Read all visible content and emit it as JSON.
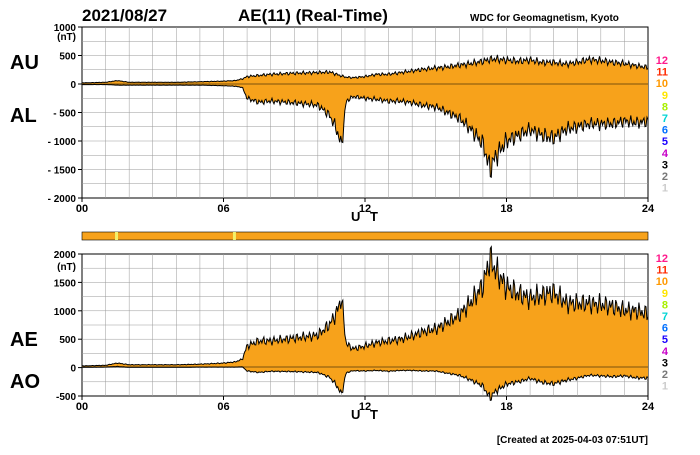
{
  "header": {
    "date": "2021/08/27",
    "title": "AE(11) (Real-Time)",
    "credit": "WDC for Geomagnetism, Kyoto"
  },
  "footer": {
    "created": "[Created at 2025-04-03 07:51UT]"
  },
  "colors": {
    "fill": "#f7a21b",
    "outline": "#000000",
    "grid": "#9a9a9a",
    "qcbar": "#f7a21b"
  },
  "legend": [
    {
      "label": "12",
      "color": "#ff1a8c"
    },
    {
      "label": "11",
      "color": "#ff2a00"
    },
    {
      "label": "10",
      "color": "#ff9900"
    },
    {
      "label": "9",
      "color": "#ffe600"
    },
    {
      "label": "8",
      "color": "#a8f000"
    },
    {
      "label": "7",
      "color": "#00d4d4"
    },
    {
      "label": "6",
      "color": "#0070ff"
    },
    {
      "label": "5",
      "color": "#1a00ff"
    },
    {
      "label": "4",
      "color": "#c800c8"
    },
    {
      "label": "3",
      "color": "#000000"
    },
    {
      "label": "2",
      "color": "#777777"
    },
    {
      "label": "1",
      "color": "#cccccc"
    }
  ],
  "chart_data": [
    {
      "type": "area",
      "panel": "AU/AL",
      "series_labels": {
        "upper": "AU",
        "lower": "AL"
      },
      "ylabel_unit": "(nT)",
      "xlabel": "U T",
      "xlim": [
        0,
        24
      ],
      "ylim": [
        -2000,
        1000
      ],
      "xticks": [
        "00",
        "06",
        "12",
        "18",
        "24"
      ],
      "yticks": [
        "1000",
        "500",
        "0",
        "- 500",
        "- 1000",
        "- 1500",
        "- 2000"
      ],
      "ytick_values": [
        1000,
        500,
        0,
        -500,
        -1000,
        -1500,
        -2000
      ],
      "grid": true,
      "x": [
        0,
        1,
        1.5,
        2,
        3,
        4,
        5,
        6,
        6.5,
        6.8,
        7,
        7.5,
        8,
        9,
        10,
        10.5,
        10.8,
        11,
        11.2,
        11.5,
        12,
        12.5,
        13,
        13.5,
        14,
        14.5,
        15,
        15.5,
        16,
        16.5,
        17,
        17.3,
        17.5,
        18,
        18.5,
        19,
        19.5,
        20,
        20.5,
        21,
        21.5,
        22,
        22.5,
        23,
        23.5,
        24
      ],
      "au": [
        20,
        30,
        60,
        30,
        30,
        30,
        40,
        50,
        60,
        90,
        130,
        150,
        170,
        190,
        200,
        210,
        170,
        140,
        120,
        110,
        130,
        170,
        170,
        200,
        230,
        260,
        280,
        300,
        330,
        360,
        400,
        430,
        440,
        420,
        400,
        420,
        380,
        380,
        350,
        380,
        430,
        410,
        380,
        360,
        320,
        290
      ],
      "al": [
        -10,
        -10,
        -20,
        -20,
        -20,
        -20,
        -20,
        -30,
        -40,
        -60,
        -250,
        -320,
        -300,
        -330,
        -370,
        -550,
        -800,
        -1100,
        -300,
        -220,
        -250,
        -270,
        -300,
        -300,
        -330,
        -380,
        -400,
        -500,
        -600,
        -800,
        -1050,
        -1500,
        -1300,
        -1000,
        -900,
        -800,
        -900,
        -950,
        -800,
        -750,
        -700,
        -700,
        -700,
        -650,
        -680,
        -660
      ]
    },
    {
      "type": "area",
      "panel": "AE/AO",
      "series_labels": {
        "upper": "AE",
        "lower": "AO"
      },
      "ylabel_unit": "(nT)",
      "xlabel": "U T",
      "xlim": [
        0,
        24
      ],
      "ylim": [
        -500,
        2000
      ],
      "xticks": [
        "00",
        "06",
        "12",
        "18",
        "24"
      ],
      "yticks": [
        "2000",
        "1500",
        "1000",
        "500",
        "0",
        "-500"
      ],
      "ytick_values": [
        2000,
        1500,
        1000,
        500,
        0,
        -500
      ],
      "grid": true,
      "x": [
        0,
        1,
        1.5,
        2,
        3,
        4,
        5,
        6,
        6.5,
        6.8,
        7,
        7.5,
        8,
        9,
        10,
        10.5,
        10.8,
        11,
        11.2,
        11.5,
        12,
        12.5,
        13,
        13.5,
        14,
        14.5,
        15,
        15.5,
        16,
        16.5,
        17,
        17.3,
        17.5,
        18,
        18.5,
        19,
        19.5,
        20,
        20.5,
        21,
        21.5,
        22,
        22.5,
        23,
        23.5,
        24
      ],
      "ae": [
        30,
        40,
        80,
        50,
        50,
        50,
        60,
        80,
        100,
        150,
        380,
        470,
        470,
        520,
        570,
        760,
        970,
        1240,
        420,
        330,
        380,
        440,
        470,
        500,
        560,
        640,
        680,
        800,
        930,
        1160,
        1450,
        1930,
        1740,
        1420,
        1300,
        1220,
        1280,
        1330,
        1150,
        1130,
        1130,
        1110,
        1080,
        1010,
        1000,
        950
      ],
      "ao": [
        5,
        10,
        20,
        5,
        5,
        5,
        10,
        10,
        10,
        15,
        -60,
        -85,
        -65,
        -70,
        -85,
        -170,
        -315,
        -480,
        -90,
        -55,
        -60,
        -50,
        -65,
        -50,
        -50,
        -60,
        -60,
        -100,
        -135,
        -220,
        -325,
        -535,
        -430,
        -290,
        -250,
        -190,
        -260,
        -285,
        -225,
        -185,
        -135,
        -145,
        -160,
        -145,
        -180,
        -185
      ]
    }
  ],
  "qc_bar": {
    "markers_hours": [
      1.4,
      6.4
    ]
  }
}
